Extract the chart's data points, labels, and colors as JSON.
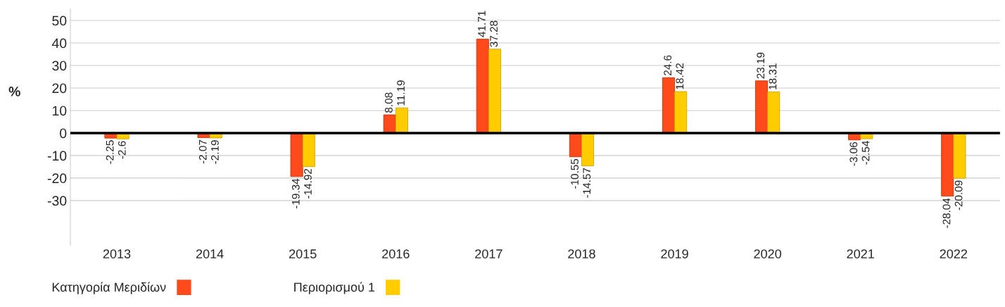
{
  "chart_data": {
    "type": "bar",
    "ylabel": "%",
    "categories": [
      "2013",
      "2014",
      "2015",
      "2016",
      "2017",
      "2018",
      "2019",
      "2020",
      "2021",
      "2022"
    ],
    "series": [
      {
        "name": "Κατηγορία Μεριδίων",
        "color": "#ff4a1c",
        "values": [
          -2.25,
          -2.07,
          -19.34,
          8.08,
          41.71,
          -10.55,
          24.6,
          23.19,
          -3.06,
          -28.04
        ]
      },
      {
        "name": "Περιορισμού 1",
        "color": "#ffcc00",
        "values": [
          -2.6,
          -2.19,
          -14.92,
          11.19,
          37.28,
          -14.57,
          18.42,
          18.31,
          -2.54,
          -20.09
        ]
      }
    ],
    "ylim": [
      -50,
      55
    ],
    "yticks": [
      -30,
      -20,
      -10,
      0,
      10,
      20,
      30,
      40,
      50
    ],
    "ref_lines": [
      {
        "axis": "y",
        "value": 0,
        "color": "#000000"
      }
    ],
    "grid": "y",
    "legend": "bottom left",
    "data_labels": true
  }
}
